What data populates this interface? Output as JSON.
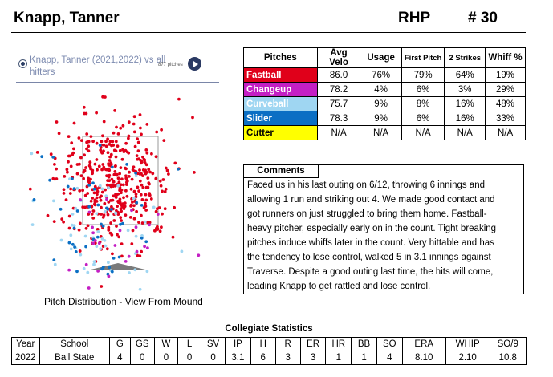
{
  "header": {
    "name": "Knapp, Tanner",
    "hand": "RHP",
    "number": "# 30"
  },
  "filter": {
    "label": "Knapp, Tanner (2021,2022) vs all hitters",
    "pitches": "877 pitches"
  },
  "plot": {
    "caption": "Pitch Distribution - View From Mound"
  },
  "pitch_table": {
    "headers": [
      "Pitches",
      "Avg Velo",
      "Usage",
      "First Pitch",
      "2 Strikes",
      "Whiff %"
    ],
    "rows": [
      {
        "name": "Fastball",
        "color": "#e0001a",
        "text_color": "#ffffff",
        "cells": [
          "86.0",
          "76%",
          "79%",
          "64%",
          "19%"
        ]
      },
      {
        "name": "Changeup",
        "color": "#c41fc4",
        "text_color": "#ffffff",
        "cells": [
          "78.2",
          "4%",
          "6%",
          "3%",
          "29%"
        ]
      },
      {
        "name": "Curveball",
        "color": "#9fd6f2",
        "text_color": "#ffffff",
        "cells": [
          "75.7",
          "9%",
          "8%",
          "16%",
          "48%"
        ]
      },
      {
        "name": "Slider",
        "color": "#0b6fc4",
        "text_color": "#ffffff",
        "cells": [
          "78.3",
          "9%",
          "6%",
          "16%",
          "33%"
        ]
      },
      {
        "name": "Cutter",
        "color": "#ffff00",
        "text_color": "#000000",
        "cells": [
          "N/A",
          "N/A",
          "N/A",
          "N/A",
          "N/A"
        ]
      }
    ]
  },
  "comments": {
    "title": "Comments",
    "lines": [
      "Faced us in his last outing on 6/12, throwing 6 innings and",
      "allowing 1 run and striking out 4. We made good contact and",
      "got runners on just struggled to bring them home. Fastball-",
      "heavy pitcher, especially early on in the count. Tight breaking",
      "pitches induce whiffs later in the count. Very hittable and has",
      "the tendency to lose control, walked 5 in 3.1 innings against",
      "Traverse. Despite a good outing last time, the hits will come,",
      "leading Knapp to get rattled and lose control."
    ]
  },
  "stats": {
    "title": "Collegiate Statistics",
    "headers": [
      "Year",
      "School",
      "G",
      "GS",
      "W",
      "L",
      "SV",
      "IP",
      "H",
      "R",
      "ER",
      "HR",
      "BB",
      "SO",
      "ERA",
      "WHIP",
      "SO/9"
    ],
    "rows": [
      [
        "2022",
        "Ball State",
        "4",
        "0",
        "0",
        "0",
        "0",
        "3.1",
        "6",
        "3",
        "3",
        "1",
        "1",
        "4",
        "8.10",
        "2.10",
        "10.8"
      ]
    ]
  },
  "colors": {
    "fastball": "#e0001a",
    "changeup": "#c41fc4",
    "curveball": "#9fd6f2",
    "slider": "#0b6fc4",
    "plate": "#7a7a7a"
  }
}
